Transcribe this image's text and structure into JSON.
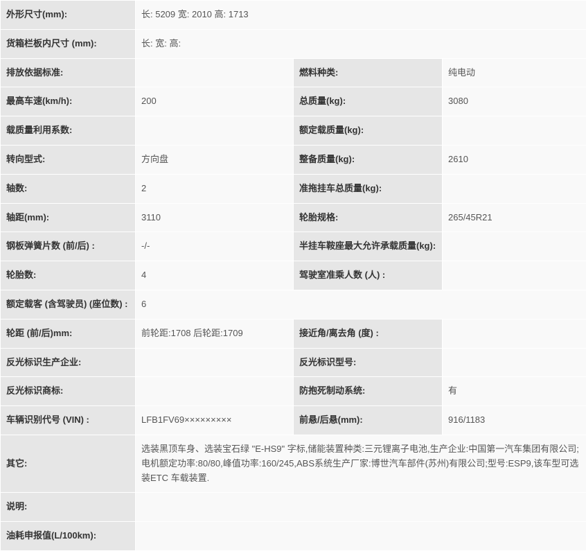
{
  "rows": [
    {
      "type": "full",
      "label": "外形尺寸(mm):",
      "value": "长: 5209 宽: 2010 高: 1713"
    },
    {
      "type": "full",
      "label": "货箱栏板内尺寸 (mm):",
      "value": "长: 宽: 高:"
    },
    {
      "type": "pair",
      "label1": "排放依据标准:",
      "value1": "",
      "label2": "燃料种类:",
      "value2": "纯电动"
    },
    {
      "type": "pair",
      "label1": "最高车速(km/h):",
      "value1": "200",
      "label2": "总质量(kg):",
      "value2": "3080"
    },
    {
      "type": "pair",
      "label1": "载质量利用系数:",
      "value1": "",
      "label2": "额定载质量(kg):",
      "value2": ""
    },
    {
      "type": "pair",
      "label1": "转向型式:",
      "value1": "方向盘",
      "label2": "整备质量(kg):",
      "value2": "2610"
    },
    {
      "type": "pair",
      "label1": "轴数:",
      "value1": "2",
      "label2": "准拖挂车总质量(kg):",
      "value2": ""
    },
    {
      "type": "pair",
      "label1": "轴距(mm):",
      "value1": "3110",
      "label2": "轮胎规格:",
      "value2": "265/45R21"
    },
    {
      "type": "pair",
      "label1": "钢板弹簧片数 (前/后) :",
      "value1": "-/-",
      "label2": "半挂车鞍座最大允许承载质量(kg):",
      "value2": ""
    },
    {
      "type": "pair",
      "label1": "轮胎数:",
      "value1": "4",
      "label2": "驾驶室准乘人数 (人) :",
      "value2": ""
    },
    {
      "type": "full",
      "label": "额定载客 (含驾驶员)  (座位数) :",
      "value": "6"
    },
    {
      "type": "pair",
      "label1": "轮距 (前/后)mm:",
      "value1": "前轮距:1708 后轮距:1709",
      "label2": "接近角/离去角 (度) :",
      "value2": ""
    },
    {
      "type": "pair",
      "label1": "反光标识生产企业:",
      "value1": "",
      "label2": "反光标识型号:",
      "value2": ""
    },
    {
      "type": "pair",
      "label1": "反光标识商标:",
      "value1": "",
      "label2": "防抱死制动系统:",
      "value2": "有"
    },
    {
      "type": "pair",
      "label1": "车辆识别代号 (VIN) :",
      "value1": "LFB1FV69×××××××××",
      "label2": "前悬/后悬(mm):",
      "value2": "916/1183"
    },
    {
      "type": "full",
      "label": "其它:",
      "value": "选装黑顶车身、选装宝石绿 \"E-HS9\" 字标,储能装置种类:三元锂离子电池,生产企业:中国第一汽车集团有限公司;电机额定功率:80/80,峰值功率:160/245,ABS系统生产厂家:博世汽车部件(苏州)有限公司;型号:ESP9,该车型可选装ETC 车载装置."
    },
    {
      "type": "full",
      "label": "说明:",
      "value": ""
    },
    {
      "type": "full",
      "label": "油耗申报值(L/100km):",
      "value": ""
    }
  ],
  "style": {
    "label_bg": "#e6e6e6",
    "value_bg": "#f9f9f9",
    "border_color": "#ffffff",
    "font_size": 13,
    "text_color": "#333333",
    "value_text_color": "#555555"
  }
}
